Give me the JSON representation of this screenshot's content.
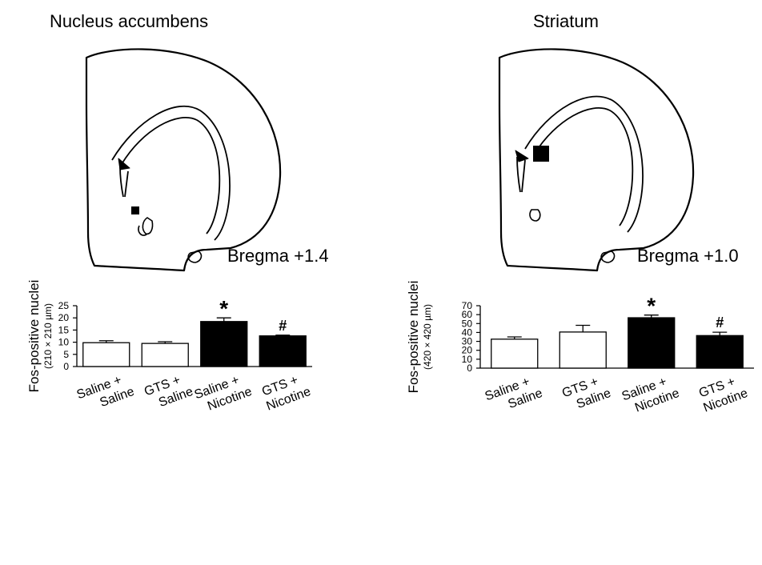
{
  "figure": {
    "left_title": "Nucleus accumbens",
    "right_title": "Striatum",
    "left_bregma": "Bregma +1.4",
    "right_bregma": "Bregma +1.0"
  },
  "chart_data": [
    {
      "type": "bar",
      "title": "",
      "ylabel": "Fos-positive nuclei",
      "ylabel_sub": "(210 × 210 µm)",
      "categories": [
        [
          "Saline +",
          "Saline"
        ],
        [
          "GTS +",
          "Saline"
        ],
        [
          "Saline +",
          "Nicotine"
        ],
        [
          "GTS +",
          "Nicotine"
        ]
      ],
      "values": [
        9.8,
        9.5,
        18.5,
        12.6
      ],
      "errors": [
        0.8,
        0.7,
        1.5,
        0.3
      ],
      "bar_colors": [
        "#ffffff",
        "#ffffff",
        "#000000",
        "#000000"
      ],
      "significance": [
        "",
        "",
        "*",
        "#"
      ],
      "ylim": [
        0,
        25
      ],
      "yticks": [
        0,
        5,
        10,
        15,
        20,
        25
      ],
      "grid": false
    },
    {
      "type": "bar",
      "title": "",
      "ylabel": "Fos-positive nuclei",
      "ylabel_sub": "(420 × 420 µm)",
      "categories": [
        [
          "Saline +",
          "Saline"
        ],
        [
          "GTS +",
          "Saline"
        ],
        [
          "Saline +",
          "Nicotine"
        ],
        [
          "GTS +",
          "Nicotine"
        ]
      ],
      "values": [
        32.5,
        40.5,
        56.5,
        36.5
      ],
      "errors": [
        2.5,
        7.5,
        3.0,
        3.8
      ],
      "bar_colors": [
        "#ffffff",
        "#ffffff",
        "#000000",
        "#000000"
      ],
      "significance": [
        "",
        "",
        "*",
        "#"
      ],
      "ylim": [
        0,
        70
      ],
      "yticks": [
        0,
        10,
        20,
        30,
        40,
        50,
        60,
        70
      ],
      "grid": false
    }
  ]
}
